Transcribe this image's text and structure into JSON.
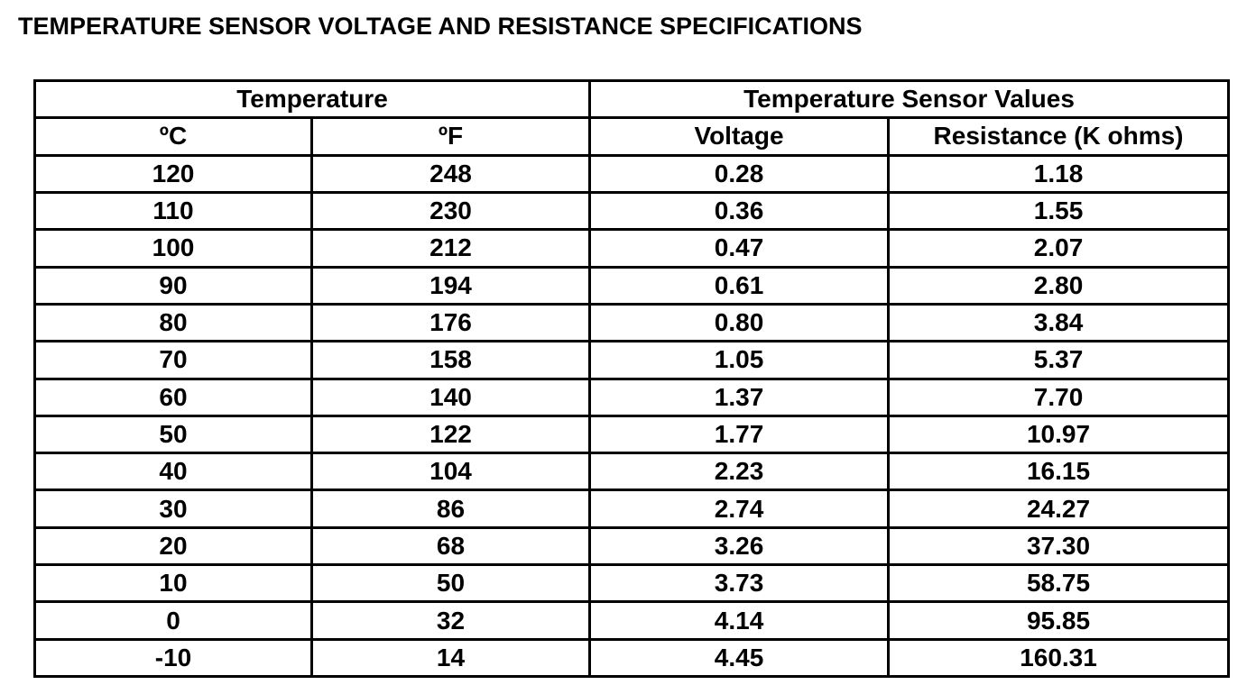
{
  "title": "TEMPERATURE SENSOR VOLTAGE AND RESISTANCE SPECIFICATIONS",
  "table": {
    "group_headers": [
      "Temperature",
      "Temperature Sensor Values"
    ],
    "headers": [
      "ºC",
      "ºF",
      "Voltage",
      "Resistance (K ohms)"
    ],
    "rows": [
      [
        "120",
        "248",
        "0.28",
        "1.18"
      ],
      [
        "110",
        "230",
        "0.36",
        "1.55"
      ],
      [
        "100",
        "212",
        "0.47",
        "2.07"
      ],
      [
        "90",
        "194",
        "0.61",
        "2.80"
      ],
      [
        "80",
        "176",
        "0.80",
        "3.84"
      ],
      [
        "70",
        "158",
        "1.05",
        "5.37"
      ],
      [
        "60",
        "140",
        "1.37",
        "7.70"
      ],
      [
        "50",
        "122",
        "1.77",
        "10.97"
      ],
      [
        "40",
        "104",
        "2.23",
        "16.15"
      ],
      [
        "30",
        "86",
        "2.74",
        "24.27"
      ],
      [
        "20",
        "68",
        "3.26",
        "37.30"
      ],
      [
        "10",
        "50",
        "3.73",
        "58.75"
      ],
      [
        "0",
        "32",
        "4.14",
        "95.85"
      ],
      [
        "-10",
        "14",
        "4.45",
        "160.31"
      ]
    ]
  }
}
